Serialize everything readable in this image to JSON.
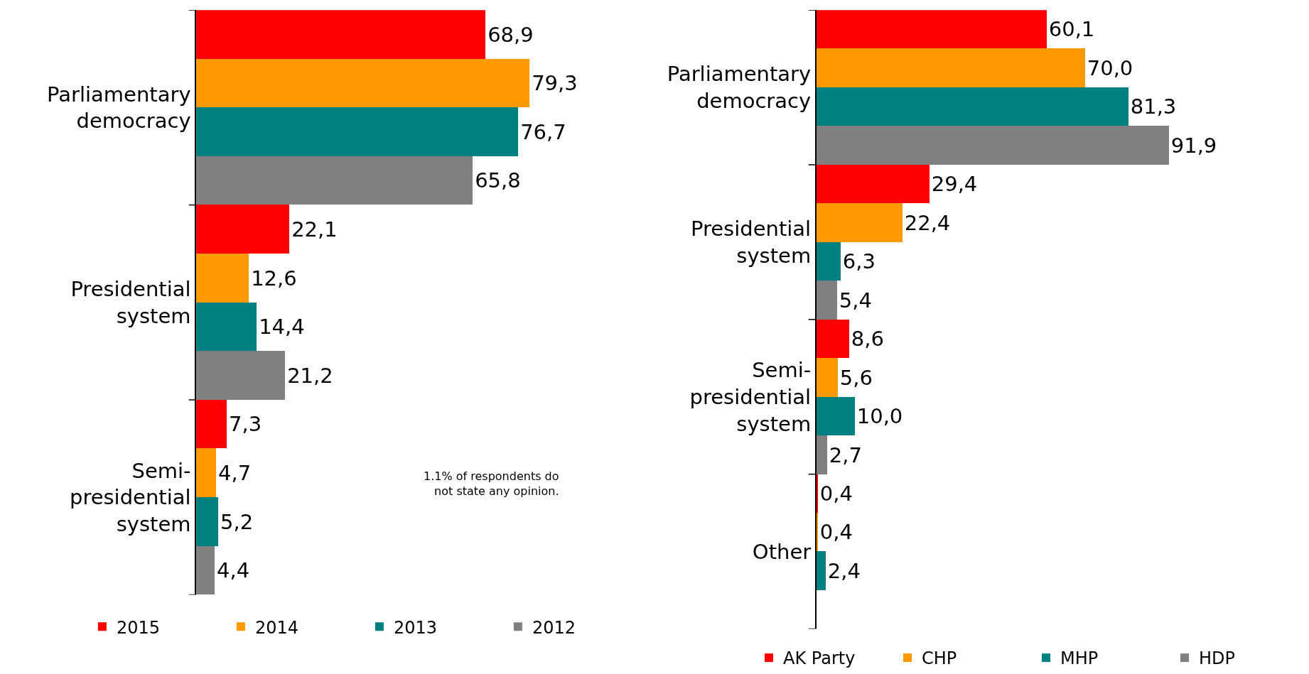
{
  "chart_data": [
    {
      "type": "bar",
      "orientation": "horizontal",
      "categories": [
        "Parliamentary democracy",
        "Presidential system",
        "Semi-presidential system"
      ],
      "series": [
        {
          "name": "2015",
          "color": "#ff0000",
          "values": [
            68.9,
            22.1,
            7.3
          ],
          "value_labels": [
            "68,9",
            "22,1",
            "7,3"
          ]
        },
        {
          "name": "2014",
          "color": "#ff9900",
          "values": [
            79.3,
            12.6,
            4.7
          ],
          "value_labels": [
            "79,3",
            "12,6",
            "4,7"
          ]
        },
        {
          "name": "2013",
          "color": "#008080",
          "values": [
            76.7,
            14.4,
            5.2
          ],
          "value_labels": [
            "76,7",
            "14,4",
            "5,2"
          ]
        },
        {
          "name": "2012",
          "color": "#808080",
          "values": [
            65.8,
            21.2,
            4.4
          ],
          "value_labels": [
            "65,8",
            "21,2",
            "4,4"
          ]
        }
      ],
      "annotations": [
        "1.1% of respondents do not state any opinion."
      ],
      "legend": "bottom"
    },
    {
      "type": "bar",
      "orientation": "horizontal",
      "categories": [
        "Parliamentary democracy",
        "Presidential system",
        "Semi-presidential system",
        "Other"
      ],
      "series": [
        {
          "name": "AK Party",
          "color": "#ff0000",
          "values": [
            60.1,
            29.4,
            8.6,
            0.4
          ],
          "value_labels": [
            "60,1",
            "29,4",
            "8,6",
            "0,4"
          ]
        },
        {
          "name": "CHP",
          "color": "#ff9900",
          "values": [
            70.0,
            22.4,
            5.6,
            0.4
          ],
          "value_labels": [
            "70,0",
            "22,4",
            "5,6",
            "0,4"
          ]
        },
        {
          "name": "MHP",
          "color": "#008080",
          "values": [
            81.3,
            6.3,
            10.0,
            2.4
          ],
          "value_labels": [
            "81,3",
            "6,3",
            "10,0",
            "2,4"
          ]
        },
        {
          "name": "HDP",
          "color": "#808080",
          "values": [
            91.9,
            5.4,
            2.7,
            null
          ],
          "value_labels": [
            "91,9",
            "5,4",
            "2,7",
            null
          ]
        }
      ],
      "legend": "bottom"
    }
  ]
}
